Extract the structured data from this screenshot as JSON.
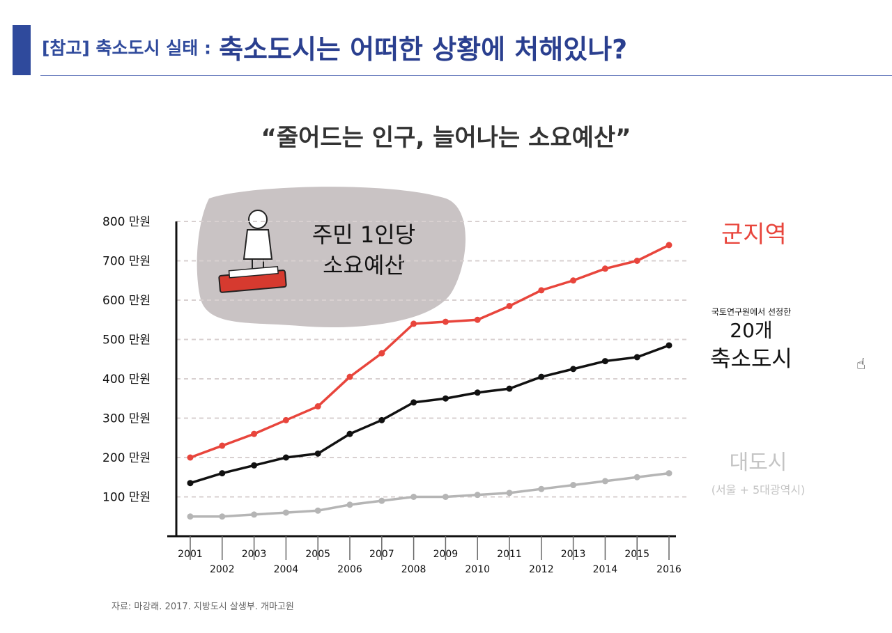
{
  "slide": {
    "title_prefix": "[참고] 축소도시 실태 :",
    "title_main": "축소도시는 어떠한 상황에 처해있나?",
    "subtitle": "“줄어드는 인구, 늘어나는 소요예산”",
    "source": "자료: 마강래. 2017. 지방도시 살생부. 개마고원"
  },
  "chart_data": {
    "type": "line",
    "title": "",
    "xlabel": "",
    "ylabel": "",
    "callout": [
      "주민 1인당",
      "소요예산"
    ],
    "x": [
      2001,
      2002,
      2003,
      2004,
      2005,
      2006,
      2007,
      2008,
      2009,
      2010,
      2011,
      2012,
      2013,
      2014,
      2015,
      2016
    ],
    "ylim": [
      0,
      800
    ],
    "yticks": [
      {
        "value": 100,
        "label": "100 만원"
      },
      {
        "value": 200,
        "label": "200 만원"
      },
      {
        "value": 300,
        "label": "300 만원"
      },
      {
        "value": 400,
        "label": "400 만원"
      },
      {
        "value": 500,
        "label": "500 만원"
      },
      {
        "value": 600,
        "label": "600 만원"
      },
      {
        "value": 700,
        "label": "700 만원"
      },
      {
        "value": 800,
        "label": "800 만원"
      }
    ],
    "grid": true,
    "series": [
      {
        "name": "군지역",
        "color": "#e8453c",
        "values": [
          200,
          230,
          260,
          295,
          330,
          405,
          465,
          540,
          545,
          550,
          585,
          625,
          650,
          680,
          700,
          740
        ]
      },
      {
        "name_lines": [
          "국토연구원에서 선정한",
          "20개",
          "축소도시"
        ],
        "color": "#111111",
        "values": [
          135,
          160,
          180,
          200,
          210,
          260,
          295,
          340,
          350,
          365,
          375,
          405,
          425,
          445,
          455,
          485
        ]
      },
      {
        "name_lines": [
          "대도시",
          "(서울 + 5대광역시)"
        ],
        "color": "#b5b5b5",
        "values": [
          50,
          50,
          55,
          60,
          65,
          80,
          90,
          100,
          100,
          105,
          110,
          120,
          130,
          140,
          150,
          160
        ]
      }
    ]
  },
  "ui": {
    "cursor_icon": "hand-pointer-icon"
  }
}
